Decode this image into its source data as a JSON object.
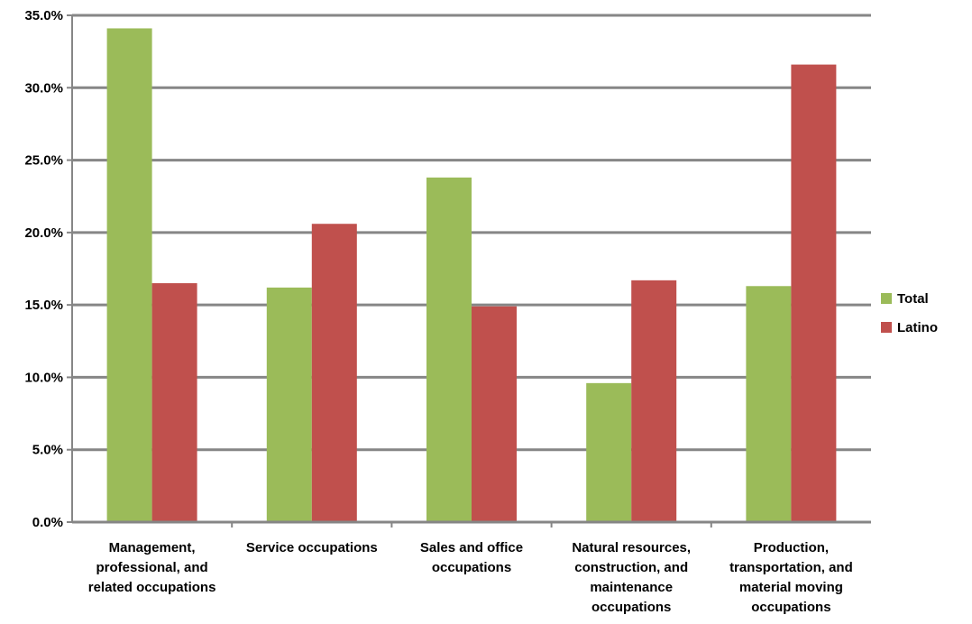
{
  "chart_data": {
    "type": "bar",
    "title": "",
    "xlabel": "",
    "ylabel": "",
    "ylim": [
      0,
      35
    ],
    "y_tick_step": 5,
    "y_tick_format": "percent_one_decimal",
    "grid": true,
    "legend_position": "right",
    "categories": [
      [
        "Management,",
        "professional, and",
        "related occupations"
      ],
      [
        "Service occupations"
      ],
      [
        "Sales and office",
        "occupations"
      ],
      [
        "Natural resources,",
        "construction, and",
        "maintenance",
        "occupations"
      ],
      [
        "Production,",
        "transportation, and",
        "material moving",
        "occupations"
      ]
    ],
    "series": [
      {
        "name": "Total",
        "color": "#9bbb59",
        "values": [
          34.1,
          16.2,
          23.8,
          9.6,
          16.3
        ]
      },
      {
        "name": "Latino",
        "color": "#c0504d",
        "values": [
          16.5,
          20.6,
          14.9,
          16.7,
          31.6
        ]
      }
    ],
    "gridline_color": "#868686",
    "axis_color": "#868686"
  }
}
